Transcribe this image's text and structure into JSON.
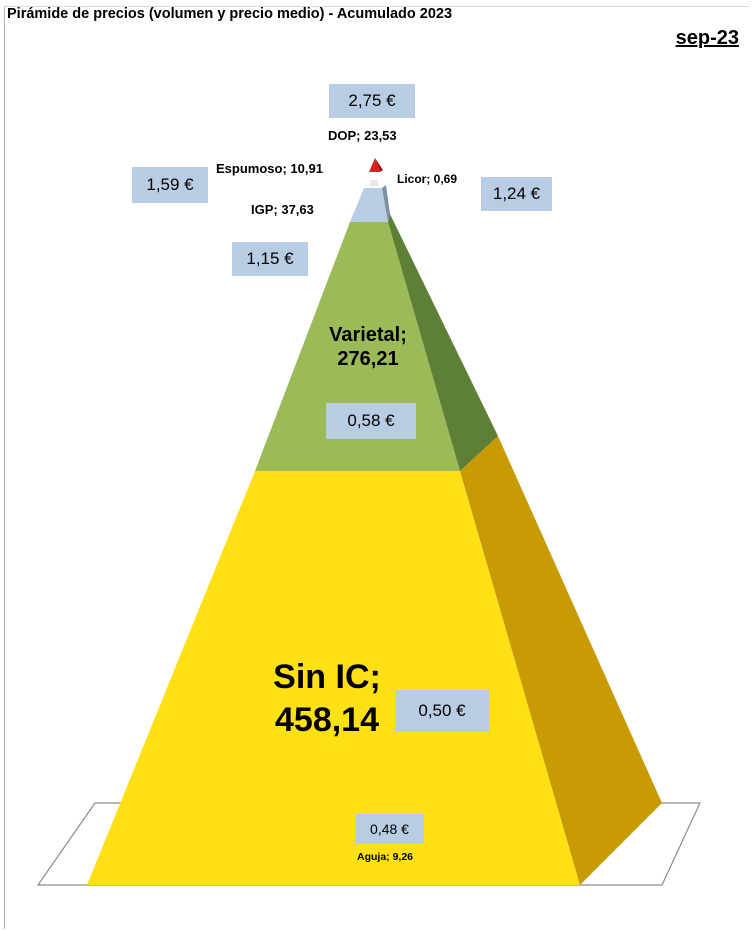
{
  "chart_title": "Pirámide de precios (volumen y precio medio) - Acumulado 2023",
  "period": "sep-23",
  "chart_data": {
    "type": "pyramid",
    "segments": [
      {
        "name": "Sin IC",
        "volume": "458,14",
        "volume_value": 458.14,
        "price": "0,50 €",
        "color": "#ffe014"
      },
      {
        "name": "Aguja",
        "volume": "9,26",
        "volume_value": 9.26,
        "price": "0,48 €",
        "color": "#ffe014"
      },
      {
        "name": "Varietal",
        "volume": "276,21",
        "volume_value": 276.21,
        "price": "0,58 €",
        "color": "#9bbb59"
      },
      {
        "name": "IGP",
        "volume": "37,63",
        "volume_value": 37.63,
        "price": "1,15 €",
        "color": "#b8cce4"
      },
      {
        "name": "Espumoso",
        "volume": "10,91",
        "volume_value": 10.91,
        "price": "1,59 €",
        "color": "#b8cce4"
      },
      {
        "name": "Licor",
        "volume": "0,69",
        "volume_value": 0.69,
        "price": "1,24 €",
        "color": "#e8e8e8"
      },
      {
        "name": "DOP",
        "volume": "23,53",
        "volume_value": 23.53,
        "price": "2,75 €",
        "color": "#e02020"
      }
    ]
  },
  "labels": {
    "sin_ic_name": "Sin IC;",
    "sin_ic_value": "458,14",
    "varietal_name": "Varietal;",
    "varietal_value": "276,21",
    "igp": "IGP; 37,63",
    "espumoso": "Espumoso; 10,91",
    "licor": "Licor; 0,69",
    "dop": "DOP; 23,53",
    "aguja": "Aguja; 9,26"
  },
  "prices": {
    "dop": "2,75 €",
    "espumoso": "1,59 €",
    "licor": "1,24 €",
    "igp": "1,15 €",
    "varietal": "0,58 €",
    "sin_ic": "0,50 €",
    "aguja": "0,48 €"
  }
}
